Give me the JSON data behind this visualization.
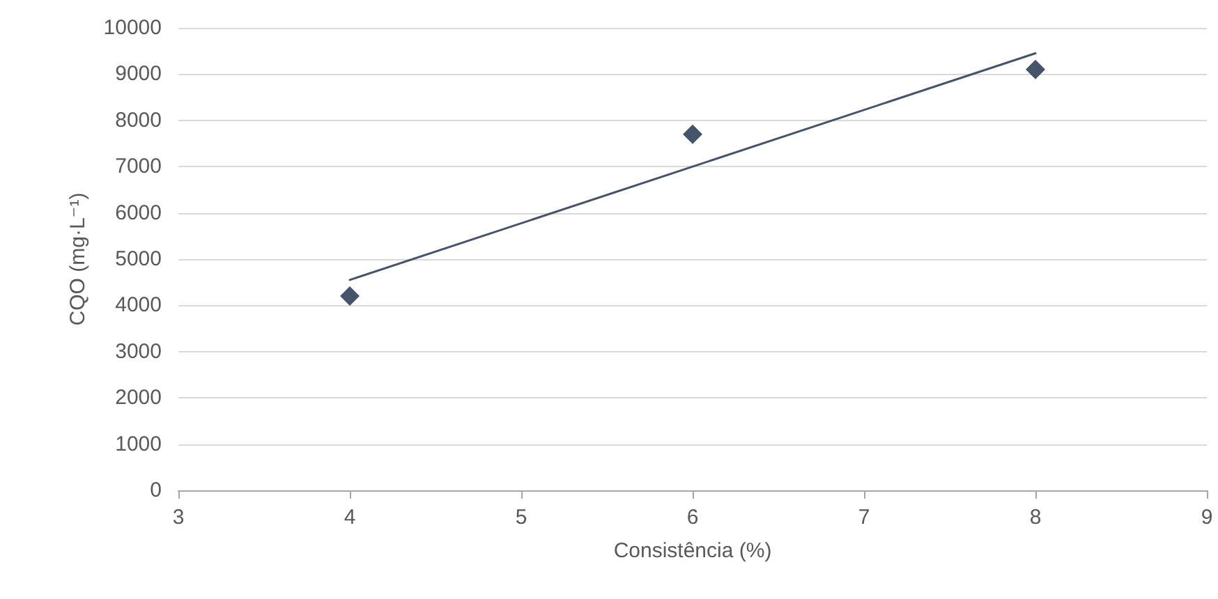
{
  "chart_data": {
    "type": "scatter",
    "xlabel": "Consistência (%)",
    "ylabel": "CQO (mg·L⁻¹)",
    "xlim": [
      3,
      9
    ],
    "xticks": [
      3,
      4,
      5,
      6,
      7,
      8,
      9
    ],
    "ylim": [
      0,
      10000
    ],
    "yticks": [
      0,
      1000,
      2000,
      3000,
      4000,
      5000,
      6000,
      7000,
      8000,
      9000,
      10000
    ],
    "grid": "y",
    "marker": "diamond",
    "series": [
      {
        "color": "#44546a",
        "x": [
          4,
          6,
          8
        ],
        "values": [
          4200,
          7700,
          9100
        ]
      },
      {
        "type": "line",
        "color": "#44546a",
        "marker": "none",
        "line_style": "solid",
        "x": [
          4,
          8
        ],
        "values": [
          4550,
          9450
        ]
      }
    ]
  }
}
